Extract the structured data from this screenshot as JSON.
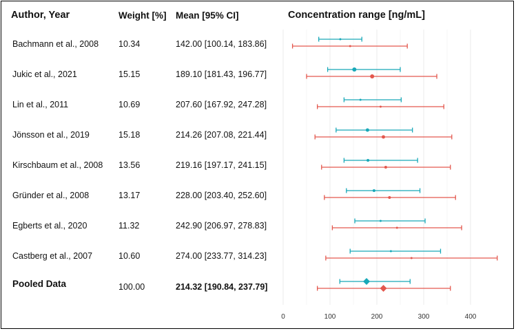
{
  "headers": {
    "author": "Author, Year",
    "weight": "Weight [%]",
    "mean": "Mean [95% CI]",
    "range": "Concentration range [ng/mL]"
  },
  "rows": [
    {
      "study": "Bachmann et al., 2008",
      "weight": "10.34",
      "mean_ci": "142.00 [100.14, 183.86]"
    },
    {
      "study": "Jukic et al., 2021",
      "weight": "15.15",
      "mean_ci": "189.10 [181.43, 196.77]"
    },
    {
      "study": "Lin et al., 2011",
      "weight": "10.69",
      "mean_ci": "207.60 [167.92, 247.28]"
    },
    {
      "study": "Jönsson et al., 2019",
      "weight": "15.18",
      "mean_ci": "214.26 [207.08, 221.44]"
    },
    {
      "study": "Kirschbaum et al., 2008",
      "weight": "13.56",
      "mean_ci": "219.16 [197.17, 241.15]"
    },
    {
      "study": "Gründer et al., 2008",
      "weight": "13.17",
      "mean_ci": "228.00 [203.40, 252.60]"
    },
    {
      "study": "Egberts et al., 2020",
      "weight": "11.32",
      "mean_ci": "242.90 [206.97, 278.83]"
    },
    {
      "study": "Castberg et al., 2007",
      "weight": "10.60",
      "mean_ci": "274.00  [233.77, 314.23]"
    }
  ],
  "pooled": {
    "study": "Pooled Data",
    "weight": "100.00",
    "mean_ci": "214.32 [190.84, 237.79]"
  },
  "colors": {
    "teal": "#17a8b8",
    "red": "#e3574d",
    "grid": "#ebebeb"
  },
  "chart_data": {
    "type": "forest",
    "title": "Concentration range [ng/mL]",
    "xlim": [
      -5,
      465
    ],
    "xticks": [
      0,
      100,
      200,
      300,
      400
    ],
    "categories": [
      "Bachmann et al., 2008",
      "Jukic et al., 2021",
      "Lin et al., 2011",
      "Jönsson et al., 2019",
      "Kirschbaum et al., 2008",
      "Gründer et al., 2008",
      "Egberts et al., 2020",
      "Castberg et al., 2007",
      "Pooled Data"
    ],
    "series": [
      {
        "name": "teal",
        "color": "#17a8b8",
        "points": [
          {
            "mid": 122,
            "low": 76,
            "high": 168,
            "size": 1.5
          },
          {
            "mid": 152,
            "low": 95,
            "high": 250,
            "size": 3
          },
          {
            "mid": 165,
            "low": 130,
            "high": 252,
            "size": 1.5
          },
          {
            "mid": 180,
            "low": 113,
            "high": 276,
            "size": 2.5
          },
          {
            "mid": 181,
            "low": 130,
            "high": 287,
            "size": 2
          },
          {
            "mid": 194,
            "low": 135,
            "high": 292,
            "size": 2
          },
          {
            "mid": 208,
            "low": 153,
            "high": 303,
            "size": 1.5
          },
          {
            "mid": 230,
            "low": 143,
            "high": 336,
            "size": 1.5
          },
          {
            "mid": 178,
            "low": 121,
            "high": 271,
            "size": 5,
            "diamond": true
          }
        ]
      },
      {
        "name": "red",
        "color": "#e3574d",
        "points": [
          {
            "mid": 143,
            "low": 20,
            "high": 265,
            "size": 1.5
          },
          {
            "mid": 190,
            "low": 50,
            "high": 328,
            "size": 3
          },
          {
            "mid": 208,
            "low": 73,
            "high": 343,
            "size": 1.5
          },
          {
            "mid": 214,
            "low": 68,
            "high": 360,
            "size": 2.5
          },
          {
            "mid": 219,
            "low": 82,
            "high": 357,
            "size": 2
          },
          {
            "mid": 227,
            "low": 88,
            "high": 368,
            "size": 2
          },
          {
            "mid": 243,
            "low": 105,
            "high": 381,
            "size": 1.5
          },
          {
            "mid": 274,
            "low": 91,
            "high": 457,
            "size": 1.5
          },
          {
            "mid": 214,
            "low": 73,
            "high": 357,
            "size": 5,
            "diamond": true
          }
        ]
      }
    ]
  }
}
